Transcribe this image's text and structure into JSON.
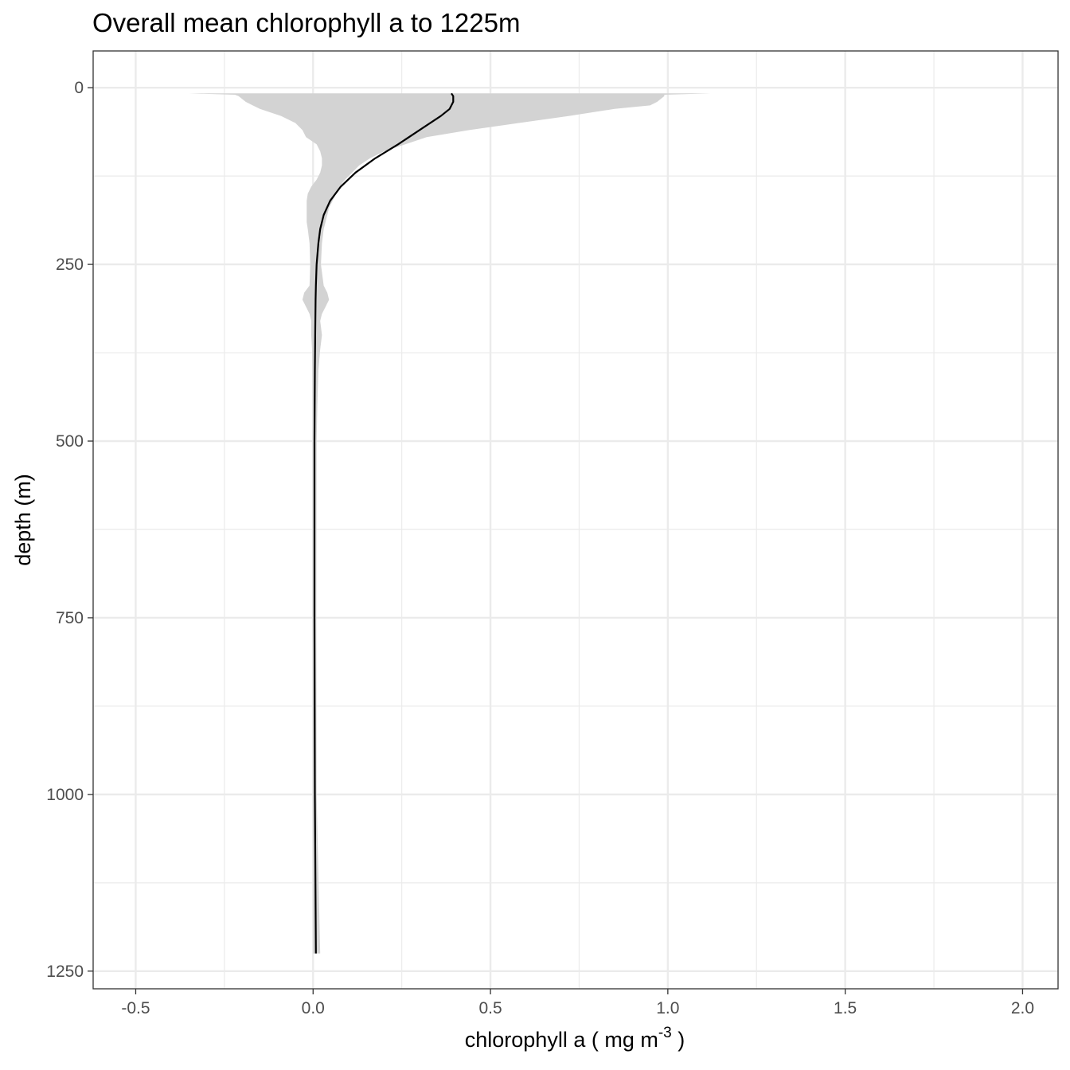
{
  "chart_data": {
    "type": "line",
    "title": "Overall mean chlorophyll a to 1225m",
    "xlabel": "chlorophyll a ( mg m",
    "xlabel_superscript": "-3",
    "xlabel_suffix": " )",
    "ylabel": "depth (m)",
    "xlim": [
      -0.62,
      2.1
    ],
    "ylim": [
      1275,
      -52
    ],
    "y_reversed": true,
    "x_ticks": [
      -0.5,
      0.0,
      0.5,
      1.0,
      1.5,
      2.0
    ],
    "x_tick_labels": [
      "-0.5",
      "0.0",
      "0.5",
      "1.0",
      "1.5",
      "2.0"
    ],
    "y_ticks": [
      0,
      250,
      500,
      750,
      1000,
      1250
    ],
    "y_tick_labels": [
      "0",
      "250",
      "500",
      "750",
      "1000",
      "1250"
    ],
    "grid": true,
    "legend": "none",
    "colors": {
      "mean_line": "#000000",
      "ribbon": "#d3d3d3",
      "grid": "#ebebeb",
      "panel_border": "#333333"
    },
    "mean_line": {
      "depth": [
        8,
        12,
        20,
        30,
        40,
        60,
        80,
        100,
        120,
        140,
        160,
        180,
        200,
        220,
        250,
        280,
        300,
        350,
        400,
        500,
        750,
        1000,
        1225
      ],
      "chlorophyll": [
        0.39,
        0.395,
        0.395,
        0.385,
        0.36,
        0.3,
        0.24,
        0.175,
        0.12,
        0.078,
        0.048,
        0.03,
        0.02,
        0.015,
        0.01,
        0.008,
        0.007,
        0.006,
        0.005,
        0.004,
        0.004,
        0.005,
        0.008
      ]
    },
    "ribbon": {
      "depth": [
        8,
        10,
        12,
        20,
        25,
        30,
        40,
        50,
        60,
        70,
        80,
        90,
        100,
        110,
        120,
        130,
        140,
        150,
        160,
        170,
        180,
        190,
        200,
        220,
        250,
        280,
        290,
        300,
        310,
        320,
        330,
        350,
        370,
        400,
        450,
        500,
        750,
        1000,
        1225
      ],
      "lower": [
        -0.35,
        -0.22,
        -0.21,
        -0.19,
        -0.17,
        -0.15,
        -0.09,
        -0.05,
        -0.03,
        -0.02,
        0.01,
        0.02,
        0.025,
        0.025,
        0.02,
        0.01,
        -0.005,
        -0.015,
        -0.018,
        -0.018,
        -0.018,
        -0.018,
        -0.015,
        -0.01,
        -0.008,
        -0.01,
        -0.025,
        -0.03,
        -0.02,
        -0.01,
        -0.005,
        -0.005,
        -0.003,
        -0.002,
        -0.001,
        -0.001,
        -0.001,
        0.0,
        0.0
      ],
      "upper": [
        1.12,
        0.99,
        0.99,
        0.97,
        0.95,
        0.85,
        0.72,
        0.58,
        0.44,
        0.32,
        0.26,
        0.2,
        0.16,
        0.13,
        0.11,
        0.09,
        0.075,
        0.065,
        0.055,
        0.045,
        0.04,
        0.035,
        0.03,
        0.025,
        0.022,
        0.03,
        0.04,
        0.045,
        0.035,
        0.025,
        0.02,
        0.025,
        0.02,
        0.015,
        0.012,
        0.01,
        0.009,
        0.01,
        0.02
      ]
    }
  }
}
